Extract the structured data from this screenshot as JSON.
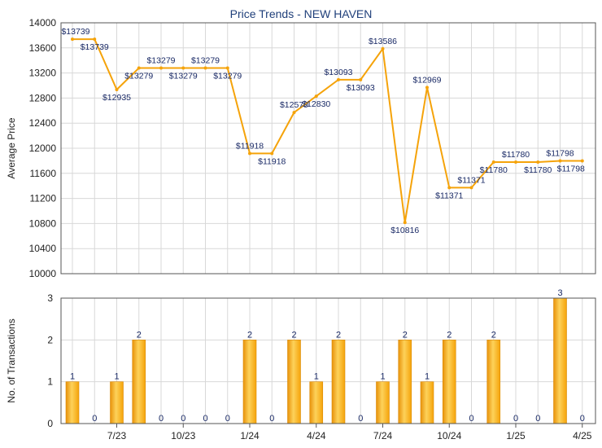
{
  "chart_data": [
    {
      "type": "line",
      "title": "Price Trends - NEW HAVEN",
      "ylabel": "Average Price",
      "ylim": [
        10000,
        14000
      ],
      "yticks": [
        10000,
        10400,
        10800,
        11200,
        11600,
        12000,
        12400,
        12800,
        13200,
        13600,
        14000
      ],
      "line_color": "#f5a30a",
      "series": [
        {
          "values": [
            13739,
            13739,
            12935,
            13279,
            13279,
            13279,
            13279,
            13279,
            11918,
            11918,
            12570,
            12830,
            13093,
            13093,
            13586,
            10816,
            12969,
            11371,
            11371,
            11780,
            11780,
            11780,
            11798,
            11798
          ],
          "labels": [
            "$13739",
            "$13739",
            "$12935",
            "$13279",
            "$13279",
            "$13279",
            "$13279",
            "$13279",
            "$11918",
            "$11918",
            "$12570",
            "$12830",
            "$13093",
            "$13093",
            "$13586",
            "$10816",
            "$12969",
            "$11371",
            "$11371",
            "$11780",
            "$11780",
            "$11780",
            "$11798",
            "$11798"
          ]
        }
      ],
      "grid": true
    },
    {
      "type": "bar",
      "ylabel": "No. of Transactions",
      "ylim": [
        0,
        3
      ],
      "yticks": [
        0,
        1,
        2,
        3
      ],
      "bar_color": "#f5a30a",
      "values": [
        1,
        0,
        1,
        2,
        0,
        0,
        0,
        0,
        2,
        0,
        2,
        1,
        2,
        0,
        1,
        2,
        1,
        2,
        0,
        2,
        0,
        0,
        3,
        0
      ],
      "xticks": [
        {
          "index": 2,
          "label": "7/23"
        },
        {
          "index": 5,
          "label": "10/23"
        },
        {
          "index": 8,
          "label": "1/24"
        },
        {
          "index": 11,
          "label": "4/24"
        },
        {
          "index": 14,
          "label": "7/24"
        },
        {
          "index": 17,
          "label": "10/24"
        },
        {
          "index": 20,
          "label": "1/25"
        },
        {
          "index": 23,
          "label": "4/25"
        }
      ],
      "grid": true
    }
  ]
}
